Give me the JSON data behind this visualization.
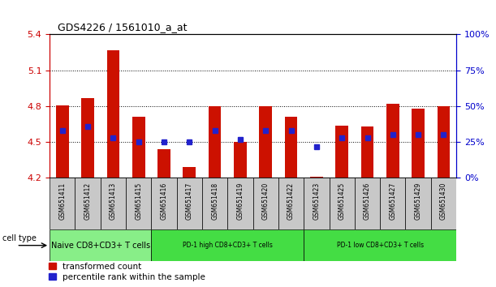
{
  "title": "GDS4226 / 1561010_a_at",
  "samples": [
    "GSM651411",
    "GSM651412",
    "GSM651413",
    "GSM651415",
    "GSM651416",
    "GSM651417",
    "GSM651418",
    "GSM651419",
    "GSM651420",
    "GSM651422",
    "GSM651423",
    "GSM651425",
    "GSM651426",
    "GSM651427",
    "GSM651429",
    "GSM651430"
  ],
  "transformed_counts": [
    4.81,
    4.87,
    5.27,
    4.71,
    4.44,
    4.29,
    4.8,
    4.5,
    4.8,
    4.71,
    4.21,
    4.64,
    4.63,
    4.82,
    4.78,
    4.8
  ],
  "percentile_ranks": [
    33,
    36,
    28,
    25,
    25,
    25,
    33,
    27,
    33,
    33,
    22,
    28,
    28,
    30,
    30,
    30
  ],
  "ymin": 4.2,
  "ymax": 5.4,
  "yticks": [
    4.2,
    4.5,
    4.8,
    5.1,
    5.4
  ],
  "right_yticks_pct": [
    0,
    25,
    50,
    75,
    100
  ],
  "bar_color": "#CC1100",
  "dot_color": "#2222CC",
  "groups": [
    {
      "label": "Naive CD8+CD3+ T cells",
      "start": 0,
      "end": 4,
      "color": "#88EE88"
    },
    {
      "label": "PD-1 high CD8+CD3+ T cells",
      "start": 4,
      "end": 10,
      "color": "#44DD44"
    },
    {
      "label": "PD-1 low CD8+CD3+ T cells",
      "start": 10,
      "end": 16,
      "color": "#44DD44"
    }
  ],
  "bar_width": 0.5,
  "baseline": 4.2,
  "legend_items": [
    {
      "label": "transformed count",
      "color": "#CC1100"
    },
    {
      "label": "percentile rank within the sample",
      "color": "#2222CC"
    }
  ],
  "cell_type_label": "cell type",
  "background_color": "#FFFFFF",
  "tick_label_color_left": "#CC0000",
  "tick_label_color_right": "#0000CC",
  "sample_col_bg": "#C8C8C8",
  "title_fontsize": 9,
  "tick_fontsize": 8,
  "label_fontsize": 7,
  "legend_fontsize": 7.5
}
